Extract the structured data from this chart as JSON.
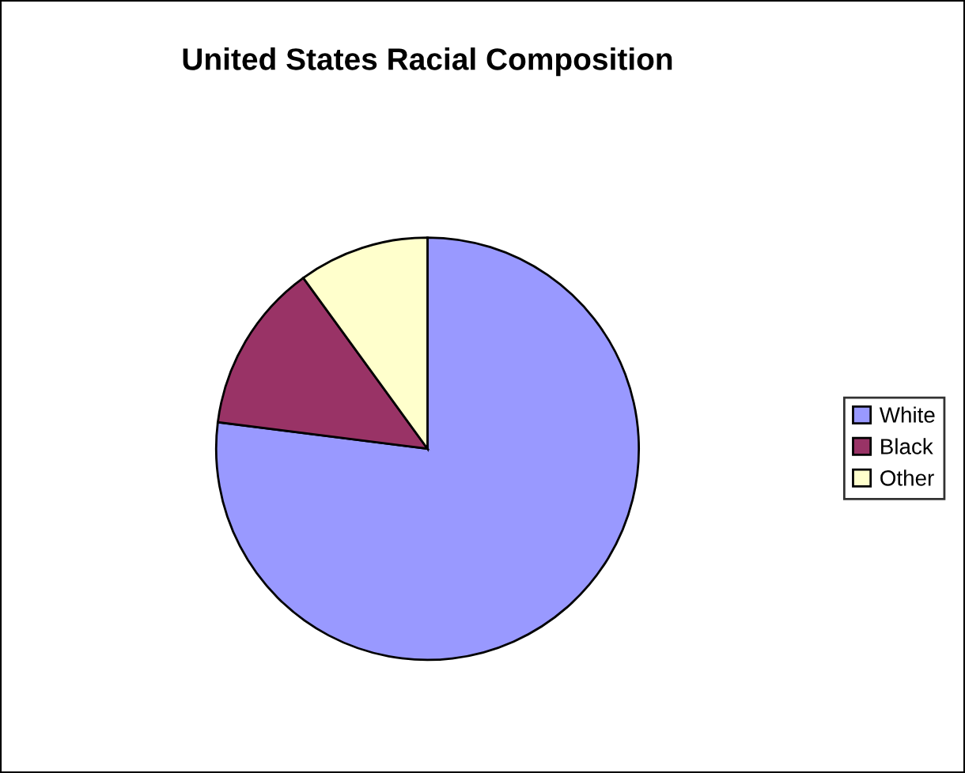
{
  "chart_data": {
    "type": "pie",
    "title": "United States Racial Composition",
    "categories": [
      "White",
      "Black",
      "Other"
    ],
    "values": [
      77,
      13,
      10
    ],
    "colors": [
      "#9999ff",
      "#993366",
      "#ffffcc"
    ],
    "legend": "right"
  }
}
